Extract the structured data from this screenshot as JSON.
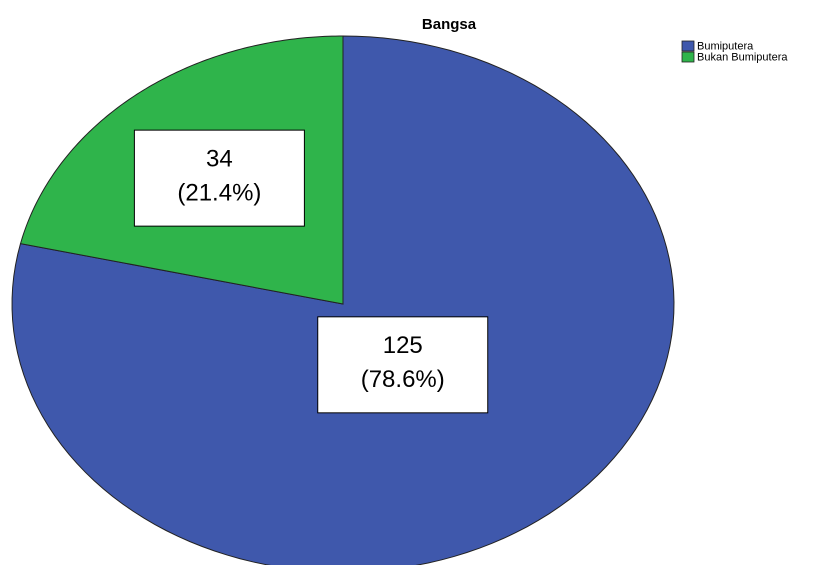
{
  "chart_data": {
    "type": "pie",
    "title": "Bangsa",
    "categories": [
      "Bumiputera",
      "Bukan Bumiputera"
    ],
    "values": [
      125,
      34
    ],
    "percents": [
      78.6,
      21.4
    ],
    "percent_labels": [
      "(78.6%)",
      "(21.4%)"
    ],
    "colors": [
      "#3f58ac",
      "#2fb44b"
    ],
    "legend": "top-right"
  }
}
